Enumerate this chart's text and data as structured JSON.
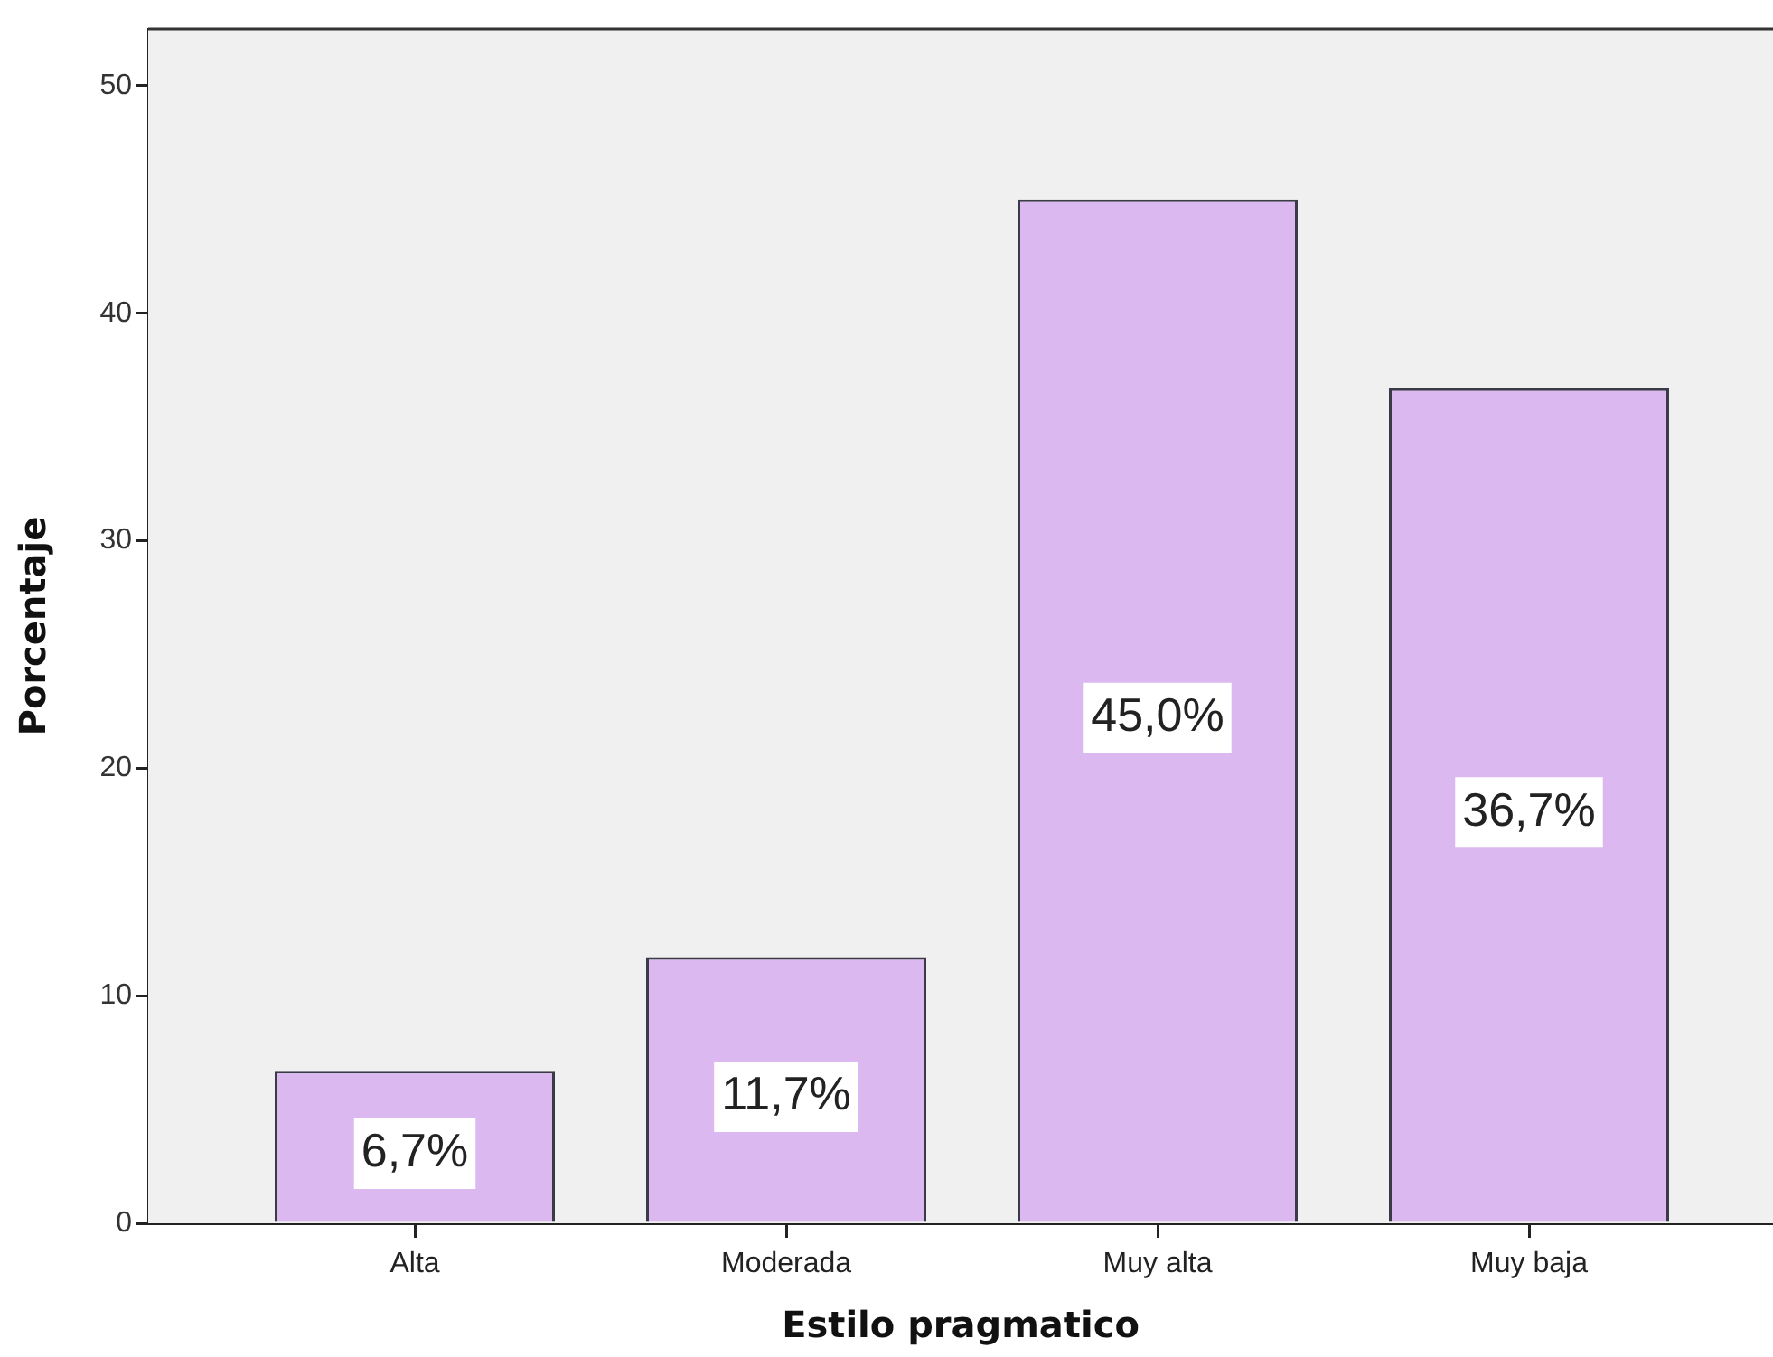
{
  "chart_data": {
    "type": "bar",
    "xlabel": "Estilo pragmatico",
    "ylabel": "Porcentaje",
    "categories": [
      "Alta",
      "Moderada",
      "Muy alta",
      "Muy baja"
    ],
    "values": [
      6.7,
      11.7,
      45.0,
      36.7
    ],
    "value_labels": [
      "6,7%",
      "11,7%",
      "45,0%",
      "36,7%"
    ],
    "color": "#dcb8f0",
    "ylim": [
      0,
      52.5
    ],
    "yticks": [
      0,
      10,
      20,
      30,
      40,
      50
    ]
  }
}
